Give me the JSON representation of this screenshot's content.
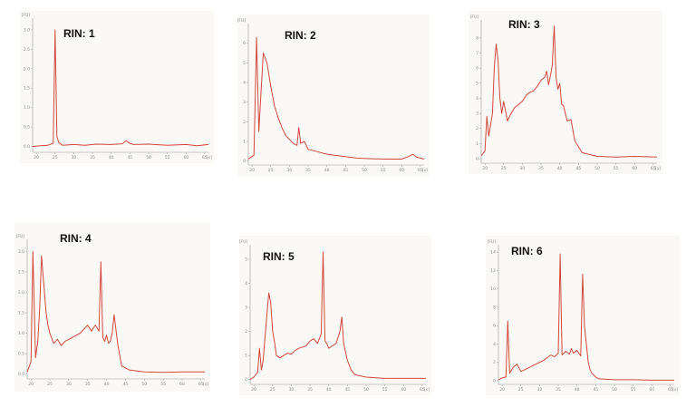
{
  "colors": {
    "trace": "#d2483f",
    "axis": "#9a9a9a",
    "panel_bg": "#fbf9f6"
  },
  "chart_data": [
    {
      "type": "line",
      "title": "RIN: 1",
      "y_unit": "[FU]",
      "x_unit": "[s]",
      "x_ticks": [
        "20",
        "25",
        "30",
        "35",
        "40",
        "45",
        "50",
        "55",
        "60",
        "65"
      ],
      "y_ticks": [
        "0.0",
        "0.5",
        "1.0",
        "1.5",
        "2.0",
        "2.5",
        "3.0"
      ],
      "xlim": [
        19,
        66
      ],
      "ylim": [
        -0.15,
        3.3
      ],
      "series": [
        {
          "x": [
            19,
            21,
            23,
            24.5,
            25,
            25.5,
            26,
            27,
            30,
            33,
            36,
            40,
            43,
            44,
            45,
            46,
            50,
            55,
            60,
            63,
            66
          ],
          "y": [
            0.0,
            0.02,
            0.03,
            0.08,
            3.0,
            0.25,
            0.1,
            0.03,
            0.05,
            0.03,
            0.06,
            0.05,
            0.07,
            0.15,
            0.08,
            0.05,
            0.06,
            0.03,
            0.05,
            0.02,
            0.05
          ]
        }
      ]
    },
    {
      "type": "line",
      "title": "RIN: 2",
      "y_unit": "[FU]",
      "x_unit": "[s]",
      "x_ticks": [
        "20",
        "25",
        "30",
        "35",
        "40",
        "45",
        "50",
        "55",
        "60",
        "65"
      ],
      "y_ticks": [
        "0",
        "1",
        "2",
        "3",
        "4",
        "5",
        "6"
      ],
      "xlim": [
        19,
        66
      ],
      "ylim": [
        -0.2,
        7
      ],
      "series": [
        {
          "x": [
            19,
            20.5,
            21.2,
            21.8,
            22.4,
            23,
            24,
            25,
            26,
            27,
            28,
            29,
            30,
            31,
            32,
            32.5,
            33,
            34,
            35,
            37,
            40,
            44,
            48,
            52,
            56,
            60,
            62,
            63,
            64,
            66
          ],
          "y": [
            0.1,
            0.3,
            6.3,
            1.5,
            3.5,
            5.5,
            5.0,
            3.8,
            2.8,
            2.2,
            1.7,
            1.3,
            1.1,
            0.9,
            0.8,
            1.7,
            0.9,
            1.0,
            0.6,
            0.5,
            0.35,
            0.25,
            0.15,
            0.12,
            0.1,
            0.1,
            0.25,
            0.35,
            0.2,
            0.1
          ]
        }
      ]
    },
    {
      "type": "line",
      "title": "RIN: 3",
      "y_unit": "[FU]",
      "x_unit": "[s]",
      "x_ticks": [
        "20",
        "25",
        "30",
        "35",
        "40",
        "45",
        "50",
        "55",
        "60",
        "65"
      ],
      "y_ticks": [
        "0",
        "1",
        "2",
        "3",
        "4",
        "5",
        "6",
        "7",
        "8"
      ],
      "xlim": [
        19,
        66
      ],
      "ylim": [
        -0.3,
        9.2
      ],
      "series": [
        {
          "x": [
            19,
            20,
            20.5,
            21,
            22,
            22.5,
            23,
            23.5,
            24,
            24.5,
            25,
            26,
            27,
            28,
            29,
            30,
            31,
            32,
            33,
            34,
            35,
            36,
            36.5,
            37,
            37.5,
            38,
            38.5,
            39,
            39.5,
            40,
            40.5,
            41,
            42,
            43,
            44,
            46,
            50,
            55,
            60,
            66
          ],
          "y": [
            0.2,
            0.5,
            2.8,
            1.5,
            3.0,
            6.0,
            7.6,
            6.5,
            4.0,
            3.0,
            3.8,
            2.5,
            3.0,
            3.4,
            3.6,
            3.8,
            4.2,
            4.4,
            4.5,
            4.8,
            5.2,
            5.4,
            5.8,
            4.9,
            5.5,
            6.2,
            8.8,
            5.4,
            4.6,
            5.0,
            3.6,
            3.5,
            2.5,
            2.6,
            1.2,
            0.4,
            0.15,
            0.1,
            0.15,
            0.1
          ]
        }
      ]
    },
    {
      "type": "line",
      "title": "RIN: 4",
      "y_unit": "[FU]",
      "x_unit": "[s]",
      "x_ticks": [
        "20",
        "25",
        "30",
        "35",
        "40",
        "45",
        "50",
        "55",
        "60",
        "65"
      ],
      "y_ticks": [
        "0.0",
        "0.5",
        "1.0",
        "1.5",
        "2.0",
        "2.5",
        "3.0"
      ],
      "xlim": [
        19,
        66
      ],
      "ylim": [
        -0.12,
        3.3
      ],
      "series": [
        {
          "x": [
            19,
            20,
            20.5,
            21.2,
            21.8,
            22.3,
            22.8,
            23.4,
            24,
            24.5,
            25,
            26,
            27,
            28,
            29,
            30,
            31,
            32,
            33,
            34,
            35,
            36,
            37,
            38,
            38.5,
            39,
            39.5,
            40,
            40.5,
            41,
            41.5,
            42,
            43,
            44,
            46,
            50,
            55,
            60,
            65,
            66
          ],
          "y": [
            0.05,
            0.3,
            3.0,
            0.4,
            0.8,
            1.6,
            2.9,
            2.2,
            1.5,
            1.2,
            1.0,
            0.75,
            0.85,
            0.7,
            0.8,
            0.85,
            0.9,
            0.95,
            1.0,
            1.1,
            1.2,
            1.05,
            1.2,
            1.05,
            2.75,
            0.9,
            0.8,
            0.95,
            0.75,
            0.8,
            1.0,
            1.45,
            0.7,
            0.2,
            0.1,
            0.05,
            0.04,
            0.05,
            0.05,
            0.05
          ]
        }
      ]
    },
    {
      "type": "line",
      "title": "RIN: 5",
      "y_unit": "[FU]",
      "x_unit": "[s]",
      "x_ticks": [
        "20",
        "25",
        "30",
        "35",
        "40",
        "45",
        "50",
        "55",
        "60",
        "65"
      ],
      "y_ticks": [
        "0",
        "1",
        "2",
        "3",
        "4",
        "5"
      ],
      "xlim": [
        19,
        66
      ],
      "ylim": [
        -0.2,
        5.6
      ],
      "series": [
        {
          "x": [
            19,
            20,
            21,
            21.5,
            22,
            22.5,
            23,
            24,
            24.5,
            25,
            25.5,
            26,
            27,
            28,
            29,
            30,
            31,
            32,
            33,
            34,
            35,
            36,
            37,
            38,
            38.5,
            39,
            39.5,
            40,
            41,
            42,
            43,
            43.5,
            44,
            45,
            46,
            47,
            50,
            55,
            60,
            66
          ],
          "y": [
            0.0,
            0.1,
            0.3,
            1.3,
            0.4,
            0.8,
            1.8,
            3.6,
            3.2,
            2.0,
            1.6,
            1.0,
            0.9,
            1.0,
            1.1,
            1.05,
            1.2,
            1.3,
            1.35,
            1.4,
            1.6,
            1.7,
            1.5,
            1.9,
            5.3,
            1.6,
            1.5,
            1.3,
            1.4,
            1.5,
            2.0,
            2.6,
            1.5,
            0.8,
            0.4,
            0.2,
            0.1,
            0.05,
            0.05,
            0.05
          ]
        }
      ]
    },
    {
      "type": "line",
      "title": "RIN: 6",
      "y_unit": "[FU]",
      "x_unit": "[s]",
      "x_ticks": [
        "20",
        "25",
        "30",
        "35",
        "40",
        "45",
        "50",
        "55",
        "60",
        "65"
      ],
      "y_ticks": [
        "0",
        "2",
        "4",
        "6",
        "8",
        "10",
        "12",
        "14"
      ],
      "xlim": [
        19,
        66
      ],
      "ylim": [
        -0.4,
        14.8
      ],
      "series": [
        {
          "x": [
            19,
            20,
            21,
            21.5,
            22,
            23,
            24,
            25,
            26,
            27,
            28,
            29,
            30,
            31,
            32,
            33,
            34,
            35,
            35.5,
            36,
            37,
            38,
            38.5,
            39,
            40,
            41,
            41.5,
            42,
            43,
            43.5,
            44,
            45,
            46,
            50,
            55,
            60,
            66
          ],
          "y": [
            0.1,
            0.3,
            0.4,
            6.5,
            0.8,
            1.5,
            1.8,
            1.0,
            1.2,
            1.4,
            1.6,
            1.8,
            2.0,
            2.2,
            2.5,
            2.8,
            2.6,
            3.0,
            13.8,
            2.8,
            3.2,
            2.9,
            3.5,
            3.0,
            3.3,
            2.7,
            11.6,
            6.0,
            2.0,
            1.2,
            0.8,
            0.4,
            0.2,
            0.1,
            0.1,
            0.05,
            0.05
          ]
        }
      ]
    }
  ]
}
